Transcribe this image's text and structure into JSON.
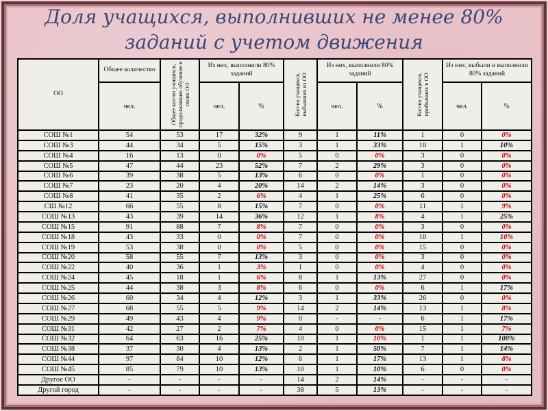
{
  "title": "Доля учащихся, выполнивших не менее 80% заданий с учетом движения",
  "colors": {
    "background": "#e9c1c9",
    "frame_dark": "#5f3138",
    "frame_mauve": "#a86e76",
    "title_text": "#3a4775",
    "cell_background": "#f0eee9",
    "negative_percent": "#c00000",
    "text": "#111111"
  },
  "table": {
    "headers": {
      "oo": "ОО",
      "total_group": "Общее количество",
      "continuing_vertical": "Общее кол-во учащихся, продолжавших обучение в своих ОО",
      "completed80_group": "Из них, выполнили 80% заданий",
      "departed_vertical": "Кол-во учащихся, выбывших из ОО",
      "arrived_vertical": "Кол-во учащихся, прибывших в ОО",
      "departed_completed_group": "Из них, выбыли и выполнили 80% заданий",
      "chel": "чел.",
      "pct": "%"
    },
    "rows": [
      {
        "name": "СОШ №1",
        "cells": [
          "54",
          "53",
          "17",
          "32%",
          "9",
          "1",
          "11%",
          "1",
          "0",
          "0%"
        ],
        "red": [
          9
        ]
      },
      {
        "name": "СОШ №3",
        "cells": [
          "44",
          "34",
          "5",
          "15%",
          "3",
          "1",
          "33%",
          "10",
          "1",
          "10%"
        ],
        "red": []
      },
      {
        "name": "СОШ №4",
        "cells": [
          "16",
          "13",
          "0",
          "0%",
          "5",
          "0",
          "0%",
          "3",
          "0",
          "0%"
        ],
        "red": [
          3,
          6,
          9
        ]
      },
      {
        "name": "СОШ №5",
        "cells": [
          "47",
          "44",
          "23",
          "52%",
          "7",
          "2",
          "29%",
          "3",
          "0",
          "0%"
        ],
        "red": [
          9
        ]
      },
      {
        "name": "СОШ №6",
        "cells": [
          "39",
          "38",
          "5",
          "13%",
          "6",
          "0",
          "0%",
          "1",
          "0",
          "0%"
        ],
        "red": [
          6,
          9
        ]
      },
      {
        "name": "СОШ №7",
        "cells": [
          "23",
          "20",
          "4",
          "20%",
          "14",
          "2",
          "14%",
          "3",
          "0",
          "0%"
        ],
        "red": [
          9
        ]
      },
      {
        "name": "СОШ №8",
        "cells": [
          "41",
          "35",
          "2",
          "6%",
          "4",
          "1",
          "25%",
          "6",
          "0",
          "0%"
        ],
        "red": [
          3,
          9
        ]
      },
      {
        "name": "СШ №12",
        "cells": [
          "66",
          "55",
          "8",
          "15%",
          "7",
          "0",
          "0%",
          "11",
          "1",
          "9%"
        ],
        "red": [
          6,
          9
        ]
      },
      {
        "name": "СОШ №13",
        "cells": [
          "43",
          "39",
          "14",
          "36%",
          "12",
          "1",
          "8%",
          "4",
          "1",
          "25%"
        ],
        "red": [
          6
        ]
      },
      {
        "name": "СОШ №15",
        "cells": [
          "91",
          "88",
          "7",
          "8%",
          "7",
          "0",
          "0%",
          "3",
          "0",
          "0%"
        ],
        "red": [
          3,
          6,
          9
        ]
      },
      {
        "name": "СОШ №18",
        "cells": [
          "43",
          "33",
          "0",
          "0%",
          "7",
          "0",
          "0%",
          "10",
          "1",
          "10%"
        ],
        "red": [
          3,
          6,
          9
        ]
      },
      {
        "name": "СОШ №19",
        "cells": [
          "53",
          "38",
          "0",
          "0%",
          "5",
          "0",
          "0%",
          "15",
          "0",
          "0%"
        ],
        "red": [
          3,
          6,
          9
        ]
      },
      {
        "name": "СОШ №20",
        "cells": [
          "58",
          "55",
          "7",
          "13%",
          "3",
          "0",
          "0%",
          "3",
          "0",
          "0%"
        ],
        "red": [
          6,
          9
        ]
      },
      {
        "name": "СОШ №22",
        "cells": [
          "40",
          "36",
          "1",
          "3%",
          "1",
          "0",
          "0%",
          "4",
          "0",
          "0%"
        ],
        "red": [
          3,
          6,
          9
        ]
      },
      {
        "name": "СОШ №24",
        "cells": [
          "45",
          "18",
          "1",
          "6%",
          "8",
          "1",
          "13%",
          "27",
          "0",
          "0%"
        ],
        "red": [
          3,
          9
        ]
      },
      {
        "name": "СОШ №25",
        "cells": [
          "44",
          "38",
          "3",
          "8%",
          "6",
          "0",
          "0%",
          "6",
          "1",
          "17%"
        ],
        "red": [
          3,
          6
        ]
      },
      {
        "name": "СОШ №26",
        "cells": [
          "60",
          "34",
          "4",
          "12%",
          "3",
          "1",
          "33%",
          "26",
          "0",
          "0%"
        ],
        "red": [
          9
        ]
      },
      {
        "name": "СОШ №27",
        "cells": [
          "68",
          "55",
          "5",
          "9%",
          "14",
          "2",
          "14%",
          "13",
          "1",
          "8%"
        ],
        "red": [
          3,
          9
        ]
      },
      {
        "name": "СОШ №29",
        "cells": [
          "49",
          "43",
          "4",
          "9%",
          "0",
          "-",
          "-",
          "6",
          "1",
          "17%"
        ],
        "red": [
          3
        ]
      },
      {
        "name": "СОШ №31",
        "cells": [
          "42",
          "27",
          "2",
          "7%",
          "4",
          "0",
          "0%",
          "15",
          "1",
          "7%"
        ],
        "red": [
          3,
          6,
          9
        ]
      },
      {
        "name": "СОШ №32",
        "cells": [
          "64",
          "63",
          "16",
          "25%",
          "10",
          "1",
          "10%",
          "1",
          "1",
          "100%"
        ],
        "red": [
          6
        ]
      },
      {
        "name": "СОШ №38",
        "cells": [
          "37",
          "30",
          "4",
          "13%",
          "2",
          "1",
          "50%",
          "7",
          "1",
          "14%"
        ],
        "red": []
      },
      {
        "name": "СОШ №44",
        "cells": [
          "97",
          "84",
          "10",
          "12%",
          "6",
          "1",
          "17%",
          "13",
          "1",
          "8%"
        ],
        "red": [
          9
        ]
      },
      {
        "name": "СОШ №45",
        "cells": [
          "85",
          "79",
          "10",
          "13%",
          "10",
          "1",
          "10%",
          "6",
          "0",
          "0%"
        ],
        "red": [
          9
        ]
      },
      {
        "name": "Другое ОО",
        "cells": [
          "-",
          "-",
          "-",
          "-",
          "14",
          "2",
          "14%",
          "-",
          "-",
          "-"
        ],
        "red": []
      },
      {
        "name": "Другой город",
        "cells": [
          "-",
          "-",
          "-",
          "-",
          "38",
          "5",
          "13%",
          "-",
          "-",
          "-"
        ],
        "red": []
      }
    ]
  }
}
